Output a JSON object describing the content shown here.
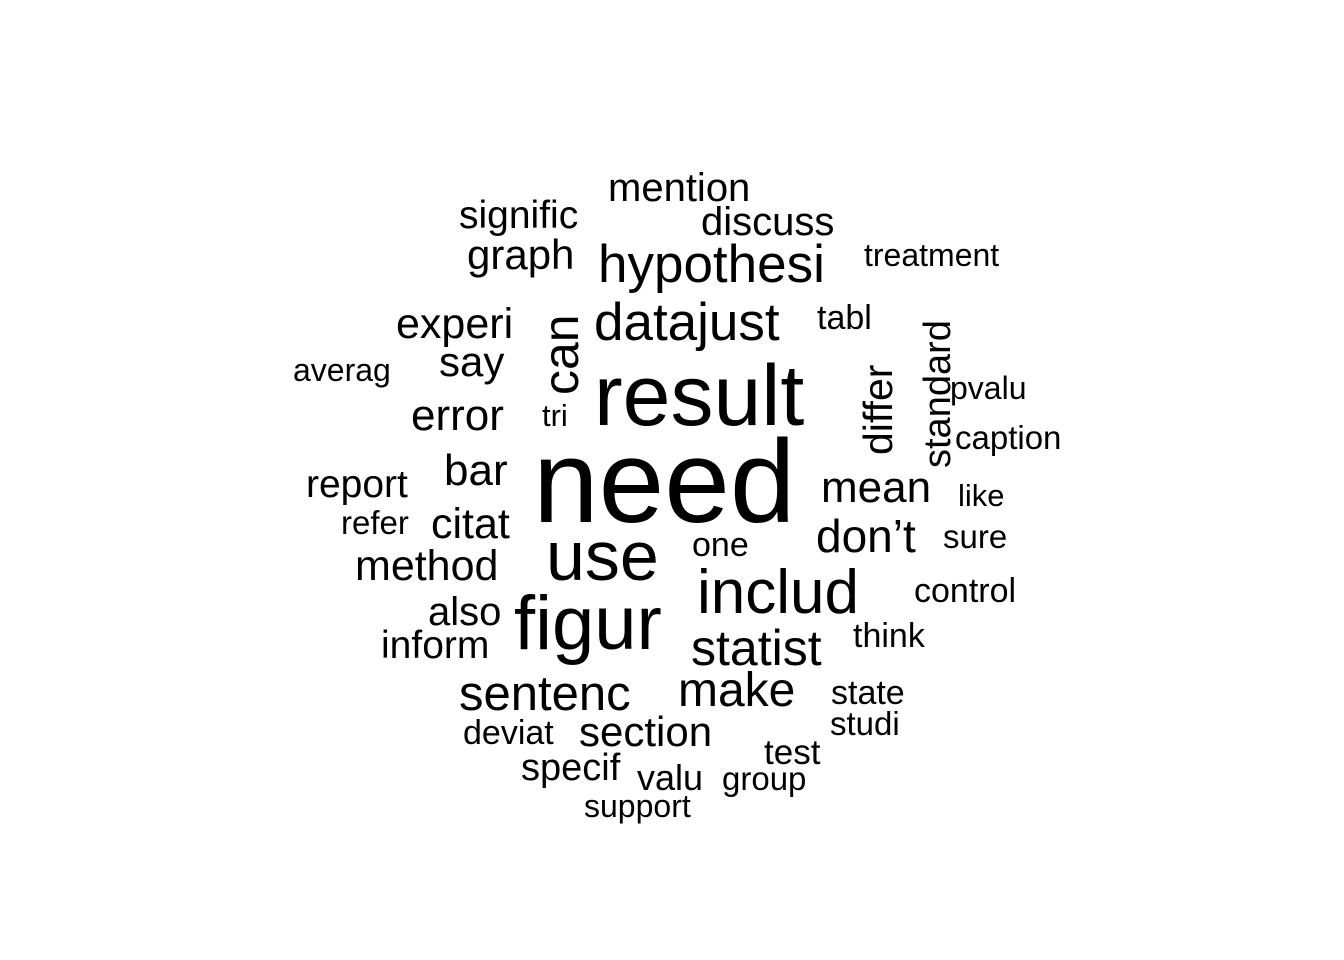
{
  "chart_data": {
    "type": "wordcloud",
    "color": "#000000",
    "words": [
      {
        "text": "need",
        "rank": 1
      },
      {
        "text": "result",
        "rank": 2
      },
      {
        "text": "figur",
        "rank": 3
      },
      {
        "text": "use",
        "rank": 4
      },
      {
        "text": "includ",
        "rank": 5
      },
      {
        "text": "can",
        "rank": 6,
        "orientation": "vertical"
      },
      {
        "text": "datajust",
        "rank": 7
      },
      {
        "text": "hypothesi",
        "rank": 8
      },
      {
        "text": "sentenc",
        "rank": 9
      },
      {
        "text": "statist",
        "rank": 10
      },
      {
        "text": "make",
        "rank": 11
      },
      {
        "text": "don’t",
        "rank": 12
      },
      {
        "text": "mean",
        "rank": 13
      },
      {
        "text": "differ",
        "rank": 14,
        "orientation": "vertical"
      },
      {
        "text": "standard",
        "rank": 15,
        "orientation": "vertical"
      },
      {
        "text": "error",
        "rank": 16
      },
      {
        "text": "bar",
        "rank": 17
      },
      {
        "text": "method",
        "rank": 18
      },
      {
        "text": "citat",
        "rank": 19
      },
      {
        "text": "experi",
        "rank": 20
      },
      {
        "text": "section",
        "rank": 21
      },
      {
        "text": "graph",
        "rank": 22
      },
      {
        "text": "say",
        "rank": 23
      },
      {
        "text": "also",
        "rank": 24
      },
      {
        "text": "discuss",
        "rank": 25
      },
      {
        "text": "mention",
        "rank": 26
      },
      {
        "text": "report",
        "rank": 27
      },
      {
        "text": "inform",
        "rank": 28
      },
      {
        "text": "signific",
        "rank": 29
      },
      {
        "text": "specif",
        "rank": 30
      },
      {
        "text": "valu",
        "rank": 31
      },
      {
        "text": "test",
        "rank": 32
      },
      {
        "text": "tabl",
        "rank": 33
      },
      {
        "text": "state",
        "rank": 34
      },
      {
        "text": "think",
        "rank": 35
      },
      {
        "text": "group",
        "rank": 36
      },
      {
        "text": "one",
        "rank": 37
      },
      {
        "text": "control",
        "rank": 38
      },
      {
        "text": "caption",
        "rank": 39
      },
      {
        "text": "studi",
        "rank": 40
      },
      {
        "text": "sure",
        "rank": 41
      },
      {
        "text": "treatment",
        "rank": 42
      },
      {
        "text": "pvalu",
        "rank": 43
      },
      {
        "text": "deviat",
        "rank": 44
      },
      {
        "text": "averag",
        "rank": 45
      },
      {
        "text": "refer",
        "rank": 46
      },
      {
        "text": "support",
        "rank": 47
      },
      {
        "text": "like",
        "rank": 48
      },
      {
        "text": "tri",
        "rank": 49
      }
    ]
  }
}
